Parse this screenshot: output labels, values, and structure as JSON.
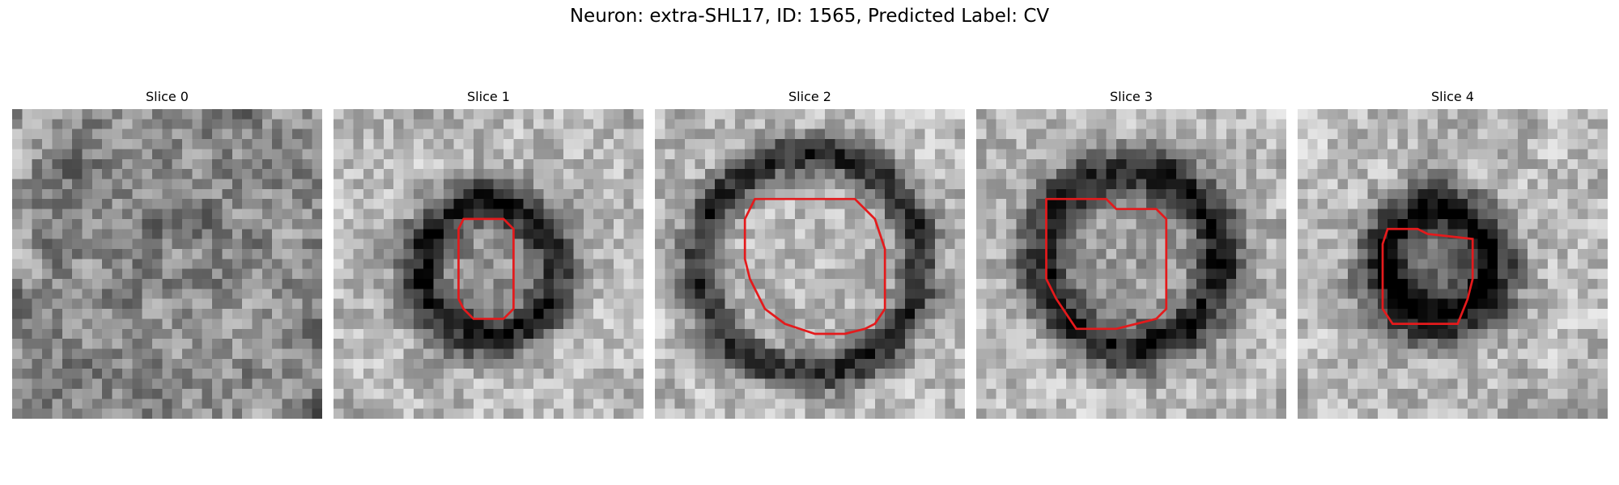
{
  "figure": {
    "title": "Neuron: extra-SHL17, ID: 1565, Predicted Label: CV"
  },
  "panels": [
    {
      "title": "Slice 0",
      "seed": 11,
      "ring": 0,
      "outline_color": "#e41a1c"
    },
    {
      "title": "Slice 1",
      "seed": 23,
      "ring": 1,
      "outline_color": "#e41a1c"
    },
    {
      "title": "Slice 2",
      "seed": 37,
      "ring": 1,
      "outline_color": "#e41a1c"
    },
    {
      "title": "Slice 3",
      "seed": 41,
      "ring": 1,
      "outline_color": "#e41a1c"
    },
    {
      "title": "Slice 4",
      "seed": 53,
      "ring": 1,
      "outline_color": "#e41a1c"
    }
  ],
  "colormap": "gray"
}
